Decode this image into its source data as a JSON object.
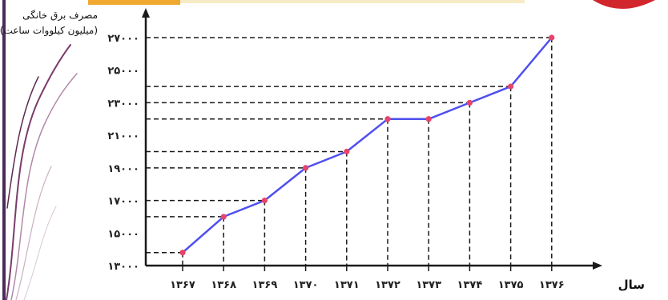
{
  "chart_data": {
    "type": "line",
    "title": "مصرف برق خانگی",
    "ylabel": "(میلیون کیلووات ساعت)",
    "xlabel": "سال",
    "categories": [
      "۱۳۶۷",
      "۱۳۶۸",
      "۱۳۶۹",
      "۱۳۷۰",
      "۱۳۷۱",
      "۱۳۷۲",
      "۱۳۷۳",
      "۱۳۷۴",
      "۱۳۷۵",
      "۱۳۷۶"
    ],
    "values": [
      13800,
      16000,
      17000,
      19000,
      20000,
      22000,
      22000,
      23000,
      24000,
      27000
    ],
    "y_tick_labels": [
      "۱۳۰۰۰",
      "۱۵۰۰۰",
      "۱۷۰۰۰",
      "۱۹۰۰۰",
      "۲۱۰۰۰",
      "۲۳۰۰۰",
      "۲۵۰۰۰",
      "۲۷۰۰۰"
    ],
    "y_tick_values": [
      13000,
      15000,
      17000,
      19000,
      21000,
      23000,
      25000,
      27000
    ],
    "ylim": [
      13000,
      27000
    ],
    "grid": false,
    "guide_lines": "dashed",
    "colors": {
      "line": "#4f4ff0",
      "marker": "#e8436a",
      "guide": "#1a1a1a",
      "axis": "#1a1a1a"
    }
  }
}
